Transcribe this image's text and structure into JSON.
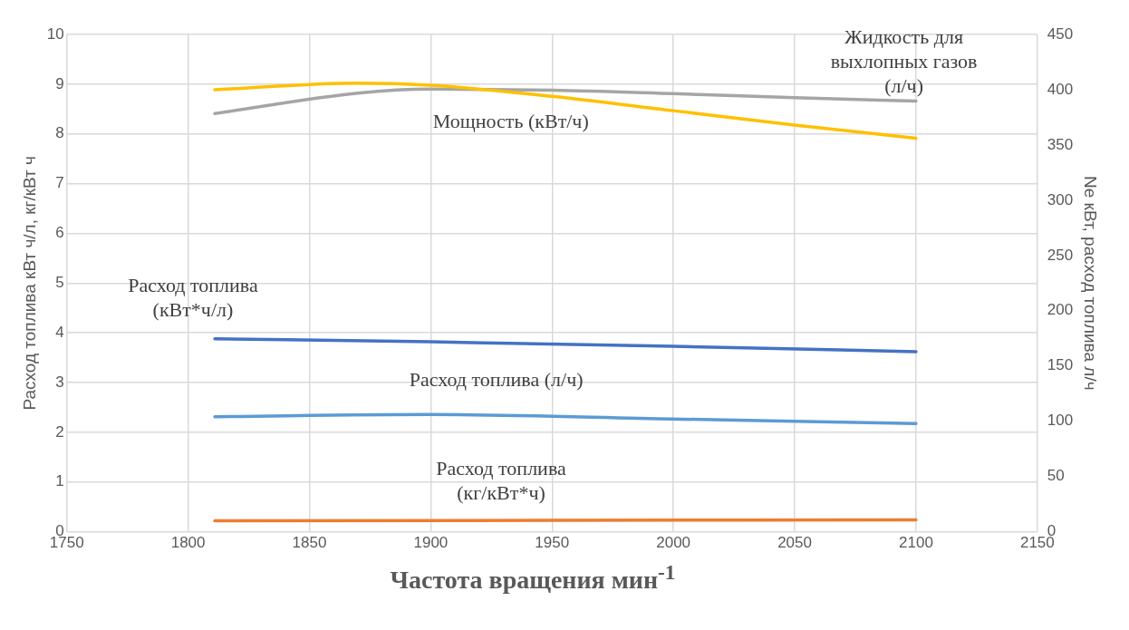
{
  "chart_data": {
    "type": "line",
    "xlabel": "Частота вращения мин$^{-1}$",
    "ylabel": "Расход топлива кВт ч/л, кг/кВт ч",
    "y2label": "Ne кВт, расход топлива л/ч",
    "xlim": [
      1750,
      2150
    ],
    "xticks": [
      1750,
      1800,
      1850,
      1900,
      1950,
      2000,
      2050,
      2100,
      2150
    ],
    "ylim": [
      0,
      10
    ],
    "yticks": [
      0,
      1,
      2,
      3,
      4,
      5,
      6,
      7,
      8,
      9,
      10
    ],
    "y2lim": [
      0,
      450
    ],
    "y2ticks": [
      0,
      50,
      100,
      150,
      200,
      250,
      300,
      350,
      400,
      450
    ],
    "grid": true,
    "legend": false,
    "marker": "none",
    "line_style": "solid",
    "series": [
      {
        "name": "Мощность (кВт/ч)",
        "color": "#ffc000",
        "axis": "y2",
        "x": [
          1811,
          1870,
          1900,
          1950,
          2000,
          2050,
          2100
        ],
        "values": [
          400,
          406,
          404,
          394,
          381,
          368,
          356
        ]
      },
      {
        "name": "Жидкость для выхлопных газов (л/ч)",
        "color": "#a5a5a5",
        "x": [
          1811,
          1870,
          1900,
          1950,
          2000,
          2050,
          2100
        ],
        "values": [
          8.41,
          8.82,
          8.9,
          8.88,
          8.81,
          8.73,
          8.66
        ]
      },
      {
        "name": "Расход топлива (кВт*ч/л)",
        "color": "#4472c4",
        "x": [
          1811,
          1900,
          2000,
          2100
        ],
        "values": [
          3.88,
          3.82,
          3.73,
          3.62
        ]
      },
      {
        "name": "Расход топлива (л/ч)",
        "color": "#5b9bd5",
        "axis": "y2",
        "x": [
          1811,
          1900,
          2000,
          2100
        ],
        "values": [
          104,
          106,
          102,
          98
        ]
      },
      {
        "name": "Расход топлива (кг/кВт*ч)",
        "color": "#ed7d31",
        "x": [
          1811,
          1950,
          2100
        ],
        "values": [
          0.22,
          0.23,
          0.24
        ]
      }
    ]
  }
}
